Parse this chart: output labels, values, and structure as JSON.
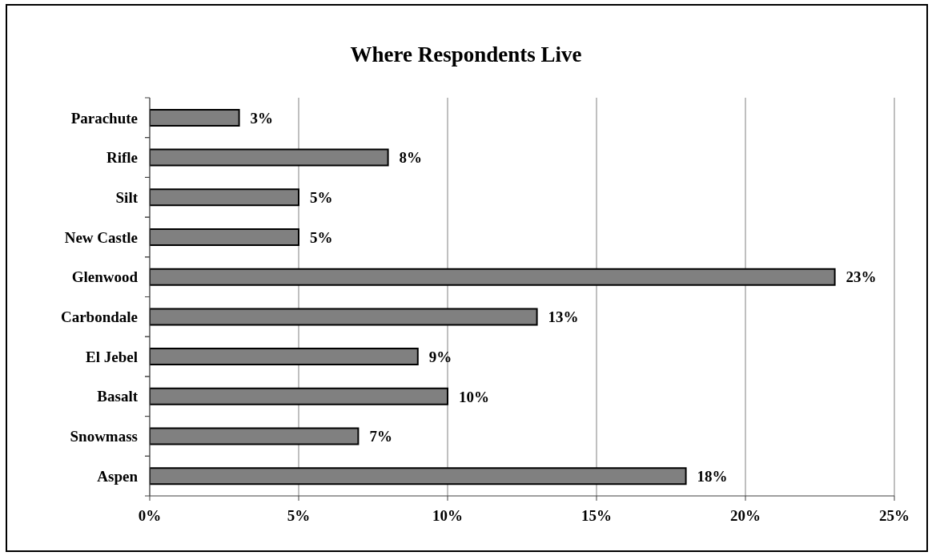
{
  "chart_data": {
    "type": "bar",
    "orientation": "horizontal",
    "title": "Where Respondents Live",
    "categories": [
      "Parachute",
      "Rifle",
      "Silt",
      "New Castle",
      "Glenwood",
      "Carbondale",
      "El Jebel",
      "Basalt",
      "Snowmass",
      "Aspen"
    ],
    "values": [
      3,
      8,
      5,
      5,
      23,
      13,
      9,
      10,
      7,
      18
    ],
    "color": "#808080",
    "value_labels": [
      "3%",
      "8%",
      "5%",
      "5%",
      "23%",
      "13%",
      "9%",
      "10%",
      "7%",
      "18%"
    ],
    "xlim": [
      0,
      25
    ],
    "xticks": [
      {
        "value": 0,
        "label": "0%"
      },
      {
        "value": 5,
        "label": "5%"
      },
      {
        "value": 10,
        "label": "10%"
      },
      {
        "value": 15,
        "label": "15%"
      },
      {
        "value": 20,
        "label": "20%"
      },
      {
        "value": 25,
        "label": "25%"
      }
    ],
    "grid": "x"
  }
}
